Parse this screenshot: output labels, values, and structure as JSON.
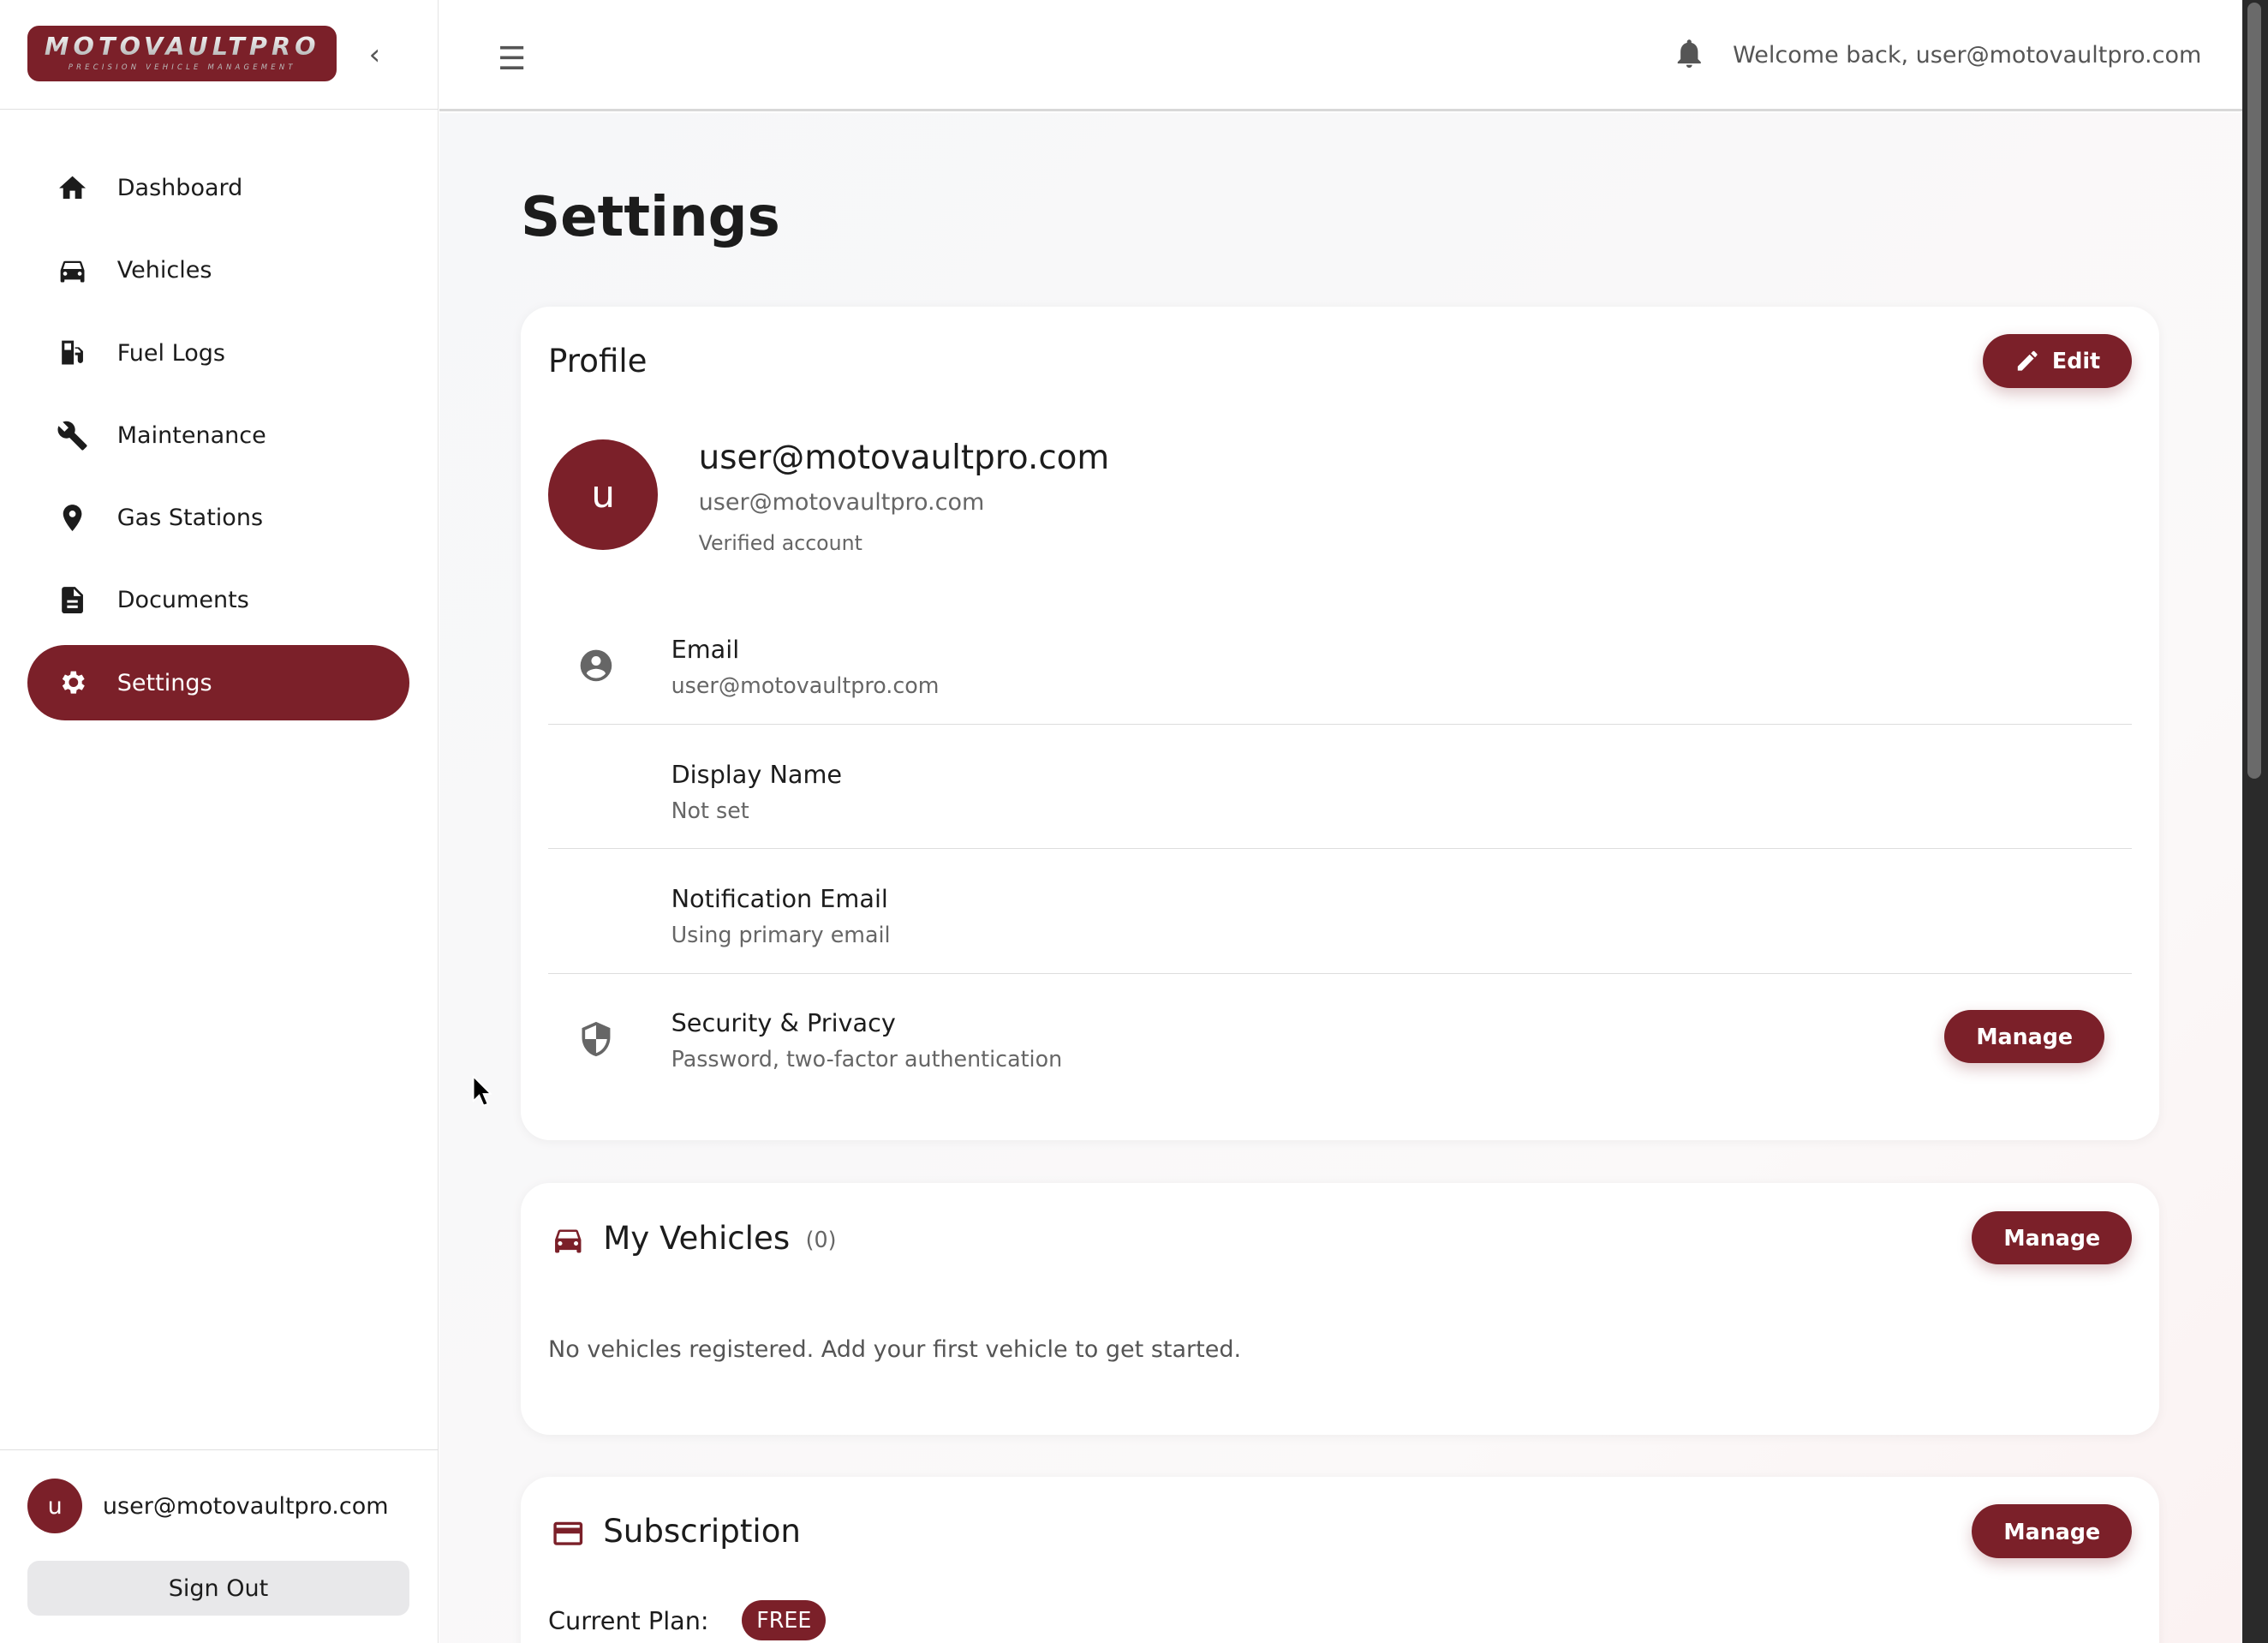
{
  "brand": {
    "name": "MOTOVAULTPRO",
    "tagline": "PRECISION VEHICLE MANAGEMENT",
    "color": "#7b2029"
  },
  "sidebar": {
    "items": [
      {
        "label": "Dashboard",
        "icon": "home-icon"
      },
      {
        "label": "Vehicles",
        "icon": "car-icon"
      },
      {
        "label": "Fuel Logs",
        "icon": "fuel-icon"
      },
      {
        "label": "Maintenance",
        "icon": "wrench-icon"
      },
      {
        "label": "Gas Stations",
        "icon": "pin-icon"
      },
      {
        "label": "Documents",
        "icon": "document-icon"
      },
      {
        "label": "Settings",
        "icon": "gear-icon",
        "active": true
      }
    ],
    "user": {
      "initial": "u",
      "email": "user@motovaultpro.com"
    },
    "sign_out": "Sign Out"
  },
  "header": {
    "welcome": "Welcome back, user@motovaultpro.com"
  },
  "page": {
    "title": "Settings"
  },
  "profile": {
    "title": "Profile",
    "edit": "Edit",
    "initial": "u",
    "name": "user@motovaultpro.com",
    "email": "user@motovaultpro.com",
    "status": "Verified account",
    "rows": [
      {
        "label": "Email",
        "value": "user@motovaultpro.com"
      },
      {
        "label": "Display Name",
        "value": "Not set"
      },
      {
        "label": "Notification Email",
        "value": "Using primary email"
      },
      {
        "label": "Security & Privacy",
        "value": "Password, two-factor authentication",
        "action": "Manage"
      }
    ]
  },
  "vehicles": {
    "title": "My Vehicles",
    "count": "(0)",
    "manage": "Manage",
    "empty": "No vehicles registered. Add your first vehicle to get started."
  },
  "subscription": {
    "title": "Subscription",
    "manage": "Manage",
    "plan_label": "Current Plan:",
    "plan": "FREE"
  }
}
